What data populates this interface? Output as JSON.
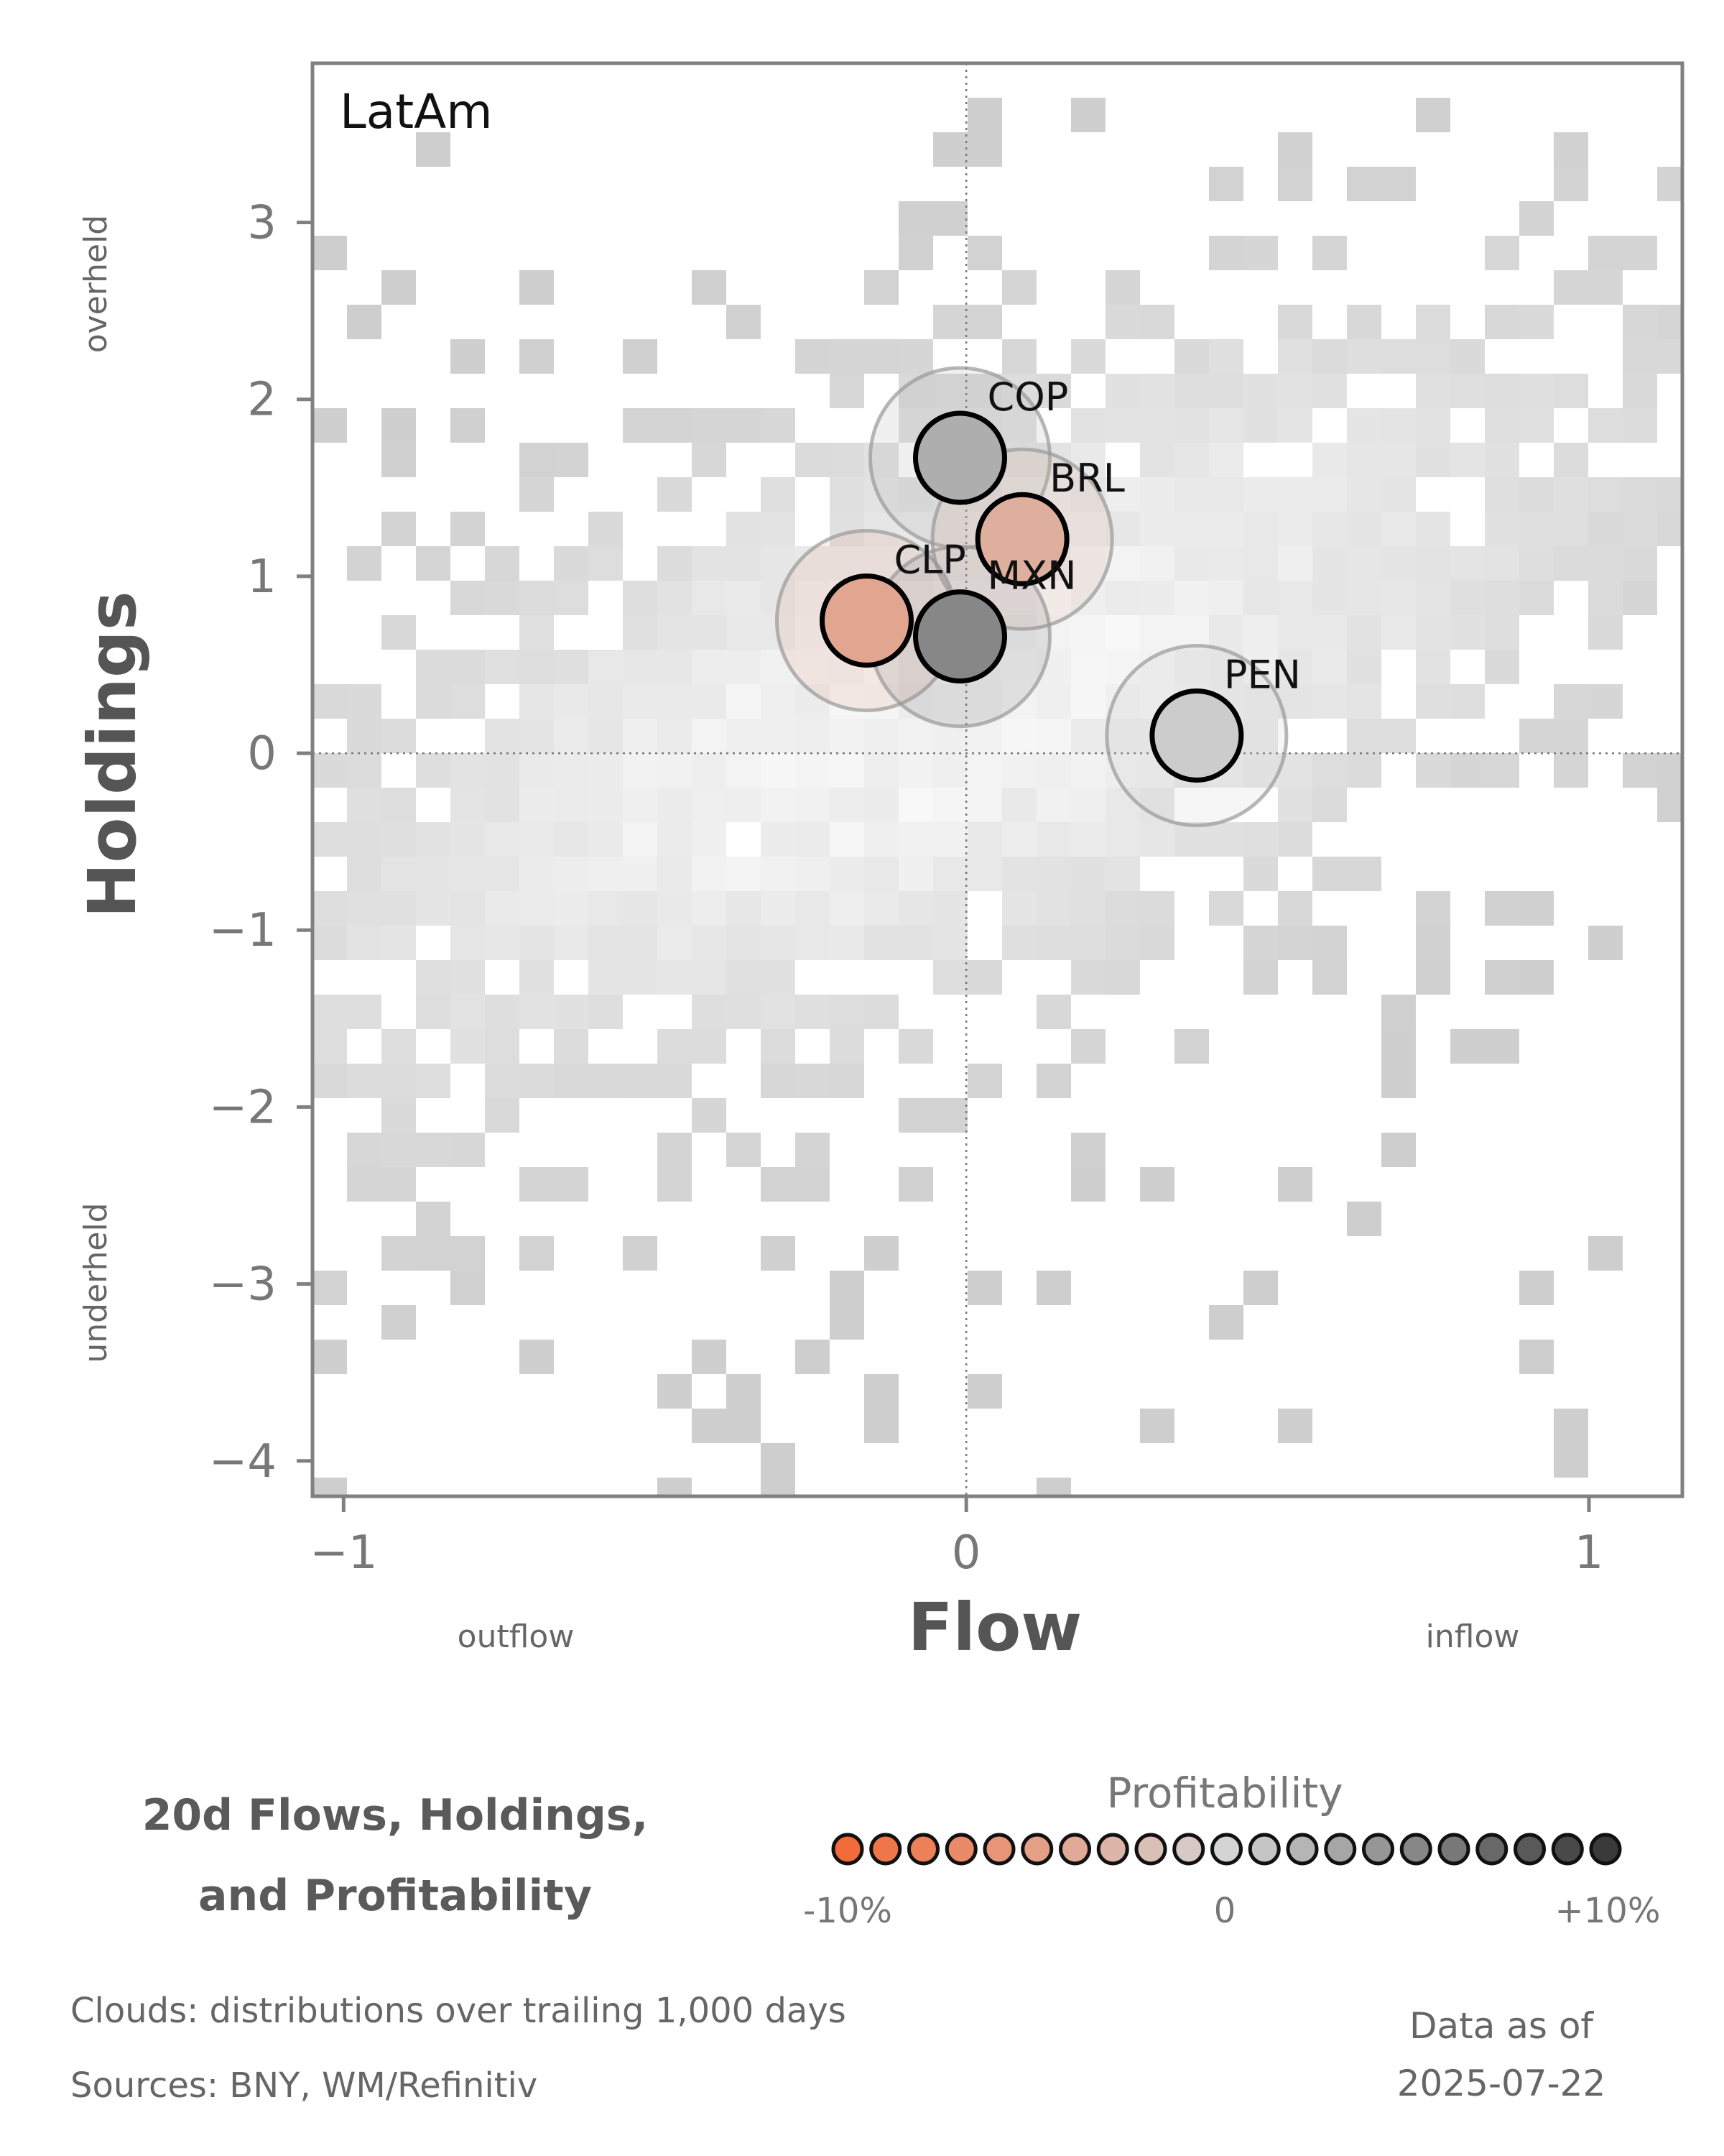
{
  "chart_data": {
    "type": "scatter",
    "panel_label": "LatAm",
    "xlabel": "Flow",
    "ylabel": "Holdings",
    "xlim": [
      -1.05,
      1.15
    ],
    "ylim": [
      -4.2,
      3.9
    ],
    "x_ticks": [
      -1,
      0,
      1
    ],
    "x_tick_labels": [
      "−1",
      "0",
      "1"
    ],
    "y_ticks": [
      3,
      2,
      1,
      0,
      -1,
      -2,
      -3,
      -4
    ],
    "y_tick_labels": [
      "3",
      "2",
      "1",
      "0",
      "−1",
      "−2",
      "−3",
      "−4"
    ],
    "x_side_labels": {
      "left": "outflow",
      "right": "inflow"
    },
    "y_side_labels": {
      "top": "overheld",
      "bottom": "underheld"
    },
    "reference_lines": {
      "x": 0,
      "y": 0,
      "style": "dotted"
    },
    "points": [
      {
        "label": "COP",
        "x": -0.01,
        "y": 1.67,
        "profitability": 0.025
      },
      {
        "label": "BRL",
        "x": 0.09,
        "y": 1.21,
        "profitability": -0.035
      },
      {
        "label": "CLP",
        "x": -0.16,
        "y": 0.75,
        "profitability": -0.045
      },
      {
        "label": "MXN",
        "x": -0.01,
        "y": 0.66,
        "profitability": 0.05
      },
      {
        "label": "PEN",
        "x": 0.37,
        "y": 0.1,
        "profitability": 0.005
      }
    ],
    "background": "2d histogram clouds of trailing distributions (grey)",
    "colors": {
      "negative": "#f26b3a",
      "neutral": "#d4d4d4",
      "positive": "#3a3a3a",
      "cloud": "#cccccc",
      "frame": "#808080"
    },
    "grid": false
  },
  "footer": {
    "title_line1": "20d Flows, Holdings,",
    "title_line2": "and Profitability",
    "legend": {
      "title": "Profitability",
      "min_label": "-10%",
      "mid_label": "0",
      "max_label": "+10%",
      "range": [
        -0.1,
        0.1
      ],
      "dots": 21
    },
    "clouds_note": "Clouds:  distributions over trailing 1,000 days",
    "sources_note": "Sources:  BNY, WM/Refinitiv",
    "asof_line1": "Data as of",
    "asof_line2": "2025-07-22"
  }
}
